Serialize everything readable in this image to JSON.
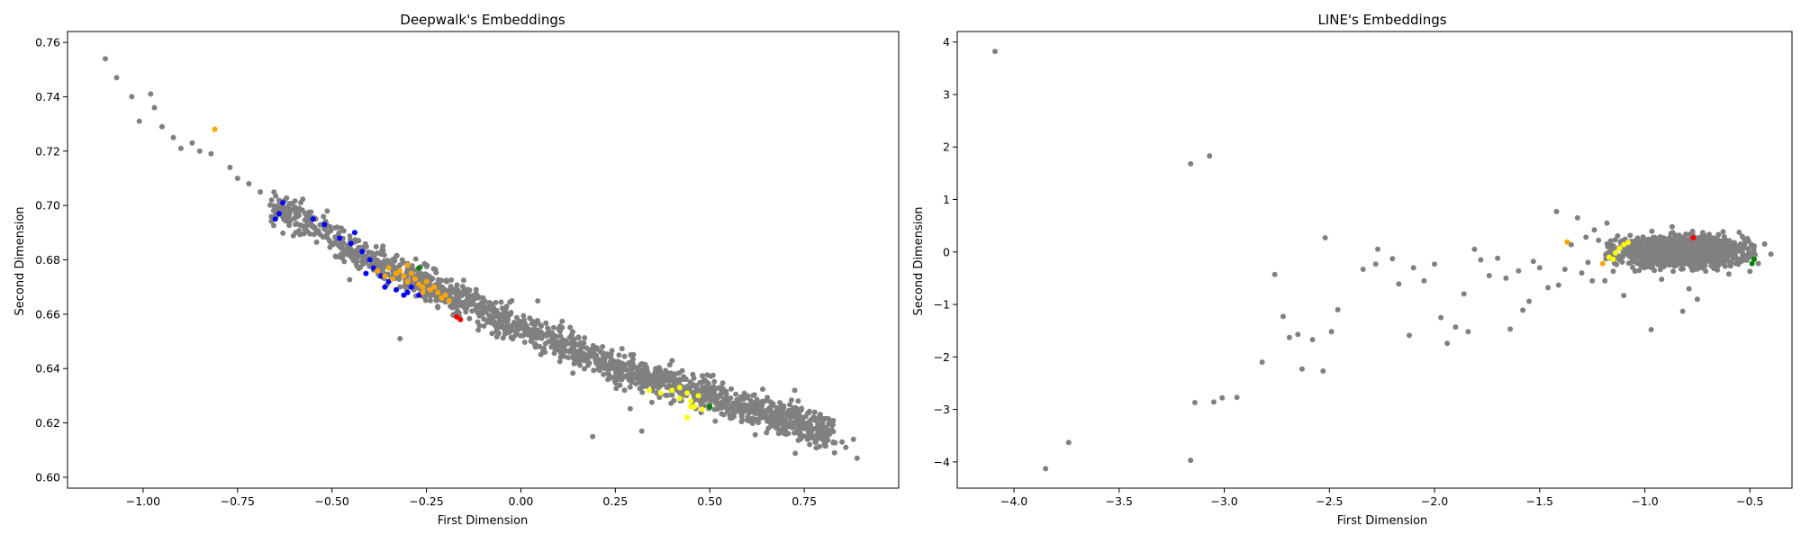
{
  "chart_data": [
    {
      "type": "scatter",
      "title": "Deepwalk's Embeddings",
      "xlabel": "First Dimension",
      "ylabel": "Second Dimension",
      "xlim": [
        -1.2,
        1.0
      ],
      "ylim": [
        0.596,
        0.764
      ],
      "xticks": [
        -1.0,
        -0.75,
        -0.5,
        -0.25,
        0.0,
        0.25,
        0.5,
        0.75
      ],
      "xtick_labels": [
        "−1.00",
        "−0.75",
        "−0.50",
        "−0.25",
        "0.00",
        "0.25",
        "0.50",
        "0.75"
      ],
      "yticks": [
        0.6,
        0.62,
        0.64,
        0.66,
        0.68,
        0.7,
        0.72,
        0.74,
        0.76
      ],
      "ytick_labels": [
        "0.60",
        "0.62",
        "0.64",
        "0.66",
        "0.68",
        "0.70",
        "0.72",
        "0.74",
        "0.76"
      ],
      "grid": false,
      "series": [
        {
          "color": "#808080",
          "points": [
            [
              -1.1,
              0.754
            ],
            [
              -1.07,
              0.747
            ],
            [
              -1.03,
              0.74
            ],
            [
              -1.01,
              0.731
            ],
            [
              -0.98,
              0.741
            ],
            [
              -0.97,
              0.736
            ],
            [
              -0.95,
              0.729
            ],
            [
              -0.92,
              0.725
            ],
            [
              -0.9,
              0.721
            ],
            [
              -0.87,
              0.723
            ],
            [
              -0.85,
              0.72
            ],
            [
              -0.82,
              0.719
            ],
            [
              -0.77,
              0.714
            ],
            [
              -0.75,
              0.71
            ],
            [
              -0.72,
              0.708
            ],
            [
              -0.69,
              0.705
            ],
            [
              -0.66,
              0.702
            ],
            [
              -0.32,
              0.651
            ],
            [
              -0.15,
              0.669
            ],
            [
              -0.1,
              0.666
            ],
            [
              -0.04,
              0.662
            ],
            [
              0.19,
              0.615
            ],
            [
              0.32,
              0.617
            ],
            [
              0.85,
              0.613
            ],
            [
              0.88,
              0.614
            ],
            [
              0.89,
              0.607
            ],
            [
              0.83,
              0.609
            ],
            [
              0.8,
              0.617
            ],
            [
              0.86,
              0.611
            ]
          ],
          "band": [
            [
              -0.66,
              0.7
            ],
            [
              -0.3,
              0.674
            ],
            [
              0.0,
              0.655
            ],
            [
              0.3,
              0.638
            ],
            [
              0.6,
              0.626
            ],
            [
              0.82,
              0.616
            ]
          ],
          "band_width": 0.006,
          "band_count": 1700
        },
        {
          "color": "#0000ff",
          "points": [
            [
              -0.65,
              0.695
            ],
            [
              -0.64,
              0.697
            ],
            [
              -0.63,
              0.701
            ],
            [
              -0.55,
              0.695
            ],
            [
              -0.52,
              0.693
            ],
            [
              -0.48,
              0.688
            ],
            [
              -0.45,
              0.686
            ],
            [
              -0.42,
              0.683
            ],
            [
              -0.4,
              0.68
            ],
            [
              -0.39,
              0.677
            ],
            [
              -0.41,
              0.675
            ],
            [
              -0.37,
              0.674
            ],
            [
              -0.35,
              0.672
            ],
            [
              -0.33,
              0.669
            ],
            [
              -0.31,
              0.667
            ],
            [
              -0.3,
              0.668
            ],
            [
              -0.29,
              0.67
            ],
            [
              -0.27,
              0.667
            ],
            [
              -0.36,
              0.67
            ],
            [
              -0.44,
              0.69
            ]
          ]
        },
        {
          "color": "#ffa500",
          "points": [
            [
              -0.81,
              0.728
            ],
            [
              -0.38,
              0.676
            ],
            [
              -0.36,
              0.674
            ],
            [
              -0.35,
              0.677
            ],
            [
              -0.34,
              0.673
            ],
            [
              -0.33,
              0.675
            ],
            [
              -0.32,
              0.676
            ],
            [
              -0.31,
              0.674
            ],
            [
              -0.3,
              0.672
            ],
            [
              -0.29,
              0.675
            ],
            [
              -0.28,
              0.673
            ],
            [
              -0.27,
              0.671
            ],
            [
              -0.26,
              0.67
            ],
            [
              -0.25,
              0.672
            ],
            [
              -0.24,
              0.669
            ],
            [
              -0.23,
              0.67
            ],
            [
              -0.22,
              0.668
            ],
            [
              -0.21,
              0.666
            ],
            [
              -0.2,
              0.667
            ],
            [
              -0.19,
              0.665
            ],
            [
              -0.3,
              0.678
            ],
            [
              -0.26,
              0.668
            ]
          ]
        },
        {
          "color": "#ff0000",
          "points": [
            [
              -0.17,
              0.659
            ],
            [
              -0.16,
              0.658
            ]
          ]
        },
        {
          "color": "#ffff00",
          "points": [
            [
              0.34,
              0.632
            ],
            [
              0.37,
              0.631
            ],
            [
              0.4,
              0.632
            ],
            [
              0.42,
              0.629
            ],
            [
              0.44,
              0.631
            ],
            [
              0.45,
              0.628
            ],
            [
              0.46,
              0.626
            ],
            [
              0.47,
              0.63
            ],
            [
              0.44,
              0.622
            ],
            [
              0.45,
              0.626
            ],
            [
              0.48,
              0.625
            ],
            [
              0.42,
              0.633
            ]
          ]
        },
        {
          "color": "#008000",
          "points": [
            [
              -0.27,
              0.677
            ],
            [
              0.5,
              0.626
            ]
          ]
        }
      ]
    },
    {
      "type": "scatter",
      "title": "LINE's Embeddings",
      "xlabel": "First Dimension",
      "ylabel": "Second Dimension",
      "xlim": [
        -4.27,
        -0.3
      ],
      "ylim": [
        -4.5,
        4.2
      ],
      "xticks": [
        -4.0,
        -3.5,
        -3.0,
        -2.5,
        -2.0,
        -1.5,
        -1.0,
        -0.5
      ],
      "xtick_labels": [
        "−4.0",
        "−3.5",
        "−3.0",
        "−2.5",
        "−2.0",
        "−1.5",
        "−1.0",
        "−0.5"
      ],
      "yticks": [
        -4,
        -3,
        -2,
        -1,
        0,
        1,
        2,
        3,
        4
      ],
      "ytick_labels": [
        "−4",
        "−3",
        "−2",
        "−1",
        "0",
        "1",
        "2",
        "3",
        "4"
      ],
      "grid": false,
      "series": [
        {
          "color": "#808080",
          "points": [
            [
              -4.09,
              3.82
            ],
            [
              -3.85,
              -4.13
            ],
            [
              -3.74,
              -3.63
            ],
            [
              -3.16,
              -3.97
            ],
            [
              -3.16,
              1.68
            ],
            [
              -3.07,
              1.83
            ],
            [
              -3.14,
              -2.87
            ],
            [
              -3.05,
              -2.86
            ],
            [
              -3.01,
              -2.78
            ],
            [
              -2.94,
              -2.77
            ],
            [
              -2.82,
              -2.1
            ],
            [
              -2.76,
              -0.43
            ],
            [
              -2.72,
              -1.23
            ],
            [
              -2.69,
              -1.63
            ],
            [
              -2.65,
              -1.57
            ],
            [
              -2.63,
              -2.23
            ],
            [
              -2.58,
              -1.67
            ],
            [
              -2.53,
              -2.27
            ],
            [
              -2.52,
              0.27
            ],
            [
              -2.49,
              -1.52
            ],
            [
              -2.46,
              -1.1
            ],
            [
              -2.34,
              -0.33
            ],
            [
              -2.28,
              -0.23
            ],
            [
              -2.27,
              0.05
            ],
            [
              -2.2,
              -0.13
            ],
            [
              -2.17,
              -0.61
            ],
            [
              -2.12,
              -1.59
            ],
            [
              -2.1,
              -0.3
            ],
            [
              -2.05,
              -0.55
            ],
            [
              -2.0,
              -0.23
            ],
            [
              -1.97,
              -1.25
            ],
            [
              -1.94,
              -1.74
            ],
            [
              -1.9,
              -1.43
            ],
            [
              -1.86,
              -0.8
            ],
            [
              -1.84,
              -1.52
            ],
            [
              -1.81,
              0.05
            ],
            [
              -1.78,
              -0.15
            ],
            [
              -1.74,
              -0.45
            ],
            [
              -1.7,
              -0.12
            ],
            [
              -1.66,
              -0.5
            ],
            [
              -1.64,
              -1.47
            ],
            [
              -1.6,
              -0.36
            ],
            [
              -1.58,
              -1.11
            ],
            [
              -1.55,
              -0.94
            ],
            [
              -1.53,
              -0.18
            ],
            [
              -1.5,
              -0.3
            ],
            [
              -1.46,
              -0.68
            ],
            [
              -1.42,
              0.77
            ],
            [
              -1.41,
              -0.63
            ],
            [
              -1.38,
              -0.33
            ],
            [
              -1.35,
              0.14
            ],
            [
              -1.32,
              0.65
            ],
            [
              -1.3,
              -0.4
            ],
            [
              -1.28,
              0.28
            ],
            [
              -1.25,
              -0.55
            ],
            [
              -1.22,
              0.22
            ],
            [
              -1.18,
              0.55
            ],
            [
              -1.15,
              -0.37
            ],
            [
              -1.1,
              -0.83
            ],
            [
              -1.05,
              0.0
            ],
            [
              -0.97,
              -1.48
            ],
            [
              -0.82,
              -1.13
            ],
            [
              -0.75,
              -0.9
            ],
            [
              -0.4,
              -0.04
            ],
            [
              -0.43,
              0.15
            ],
            [
              -0.46,
              -0.22
            ],
            [
              -0.5,
              -0.37
            ],
            [
              -1.27,
              -0.2
            ],
            [
              -1.24,
              0.42
            ],
            [
              -1.19,
              -0.55
            ],
            [
              -0.87,
              0.48
            ],
            [
              -0.65,
              0.33
            ],
            [
              -0.6,
              -0.42
            ],
            [
              -0.92,
              -0.52
            ],
            [
              -0.79,
              -0.7
            ]
          ],
          "blob": {
            "cx": -0.83,
            "cy": 0.0,
            "rx": 0.34,
            "ry": 0.33,
            "count": 1500
          }
        },
        {
          "color": "#ffa500",
          "points": [
            [
              -1.37,
              0.19
            ],
            [
              -1.2,
              -0.22
            ]
          ]
        },
        {
          "color": "#ffff00",
          "points": [
            [
              -1.17,
              -0.1
            ],
            [
              -1.14,
              -0.02
            ],
            [
              -1.12,
              0.07
            ],
            [
              -1.1,
              0.14
            ],
            [
              -1.15,
              -0.14
            ],
            [
              -1.08,
              0.18
            ]
          ]
        },
        {
          "color": "#ff0000",
          "points": [
            [
              -0.77,
              0.27
            ]
          ]
        },
        {
          "color": "#008000",
          "points": [
            [
              -0.49,
              -0.22
            ],
            [
              -0.48,
              -0.14
            ]
          ]
        }
      ]
    }
  ]
}
